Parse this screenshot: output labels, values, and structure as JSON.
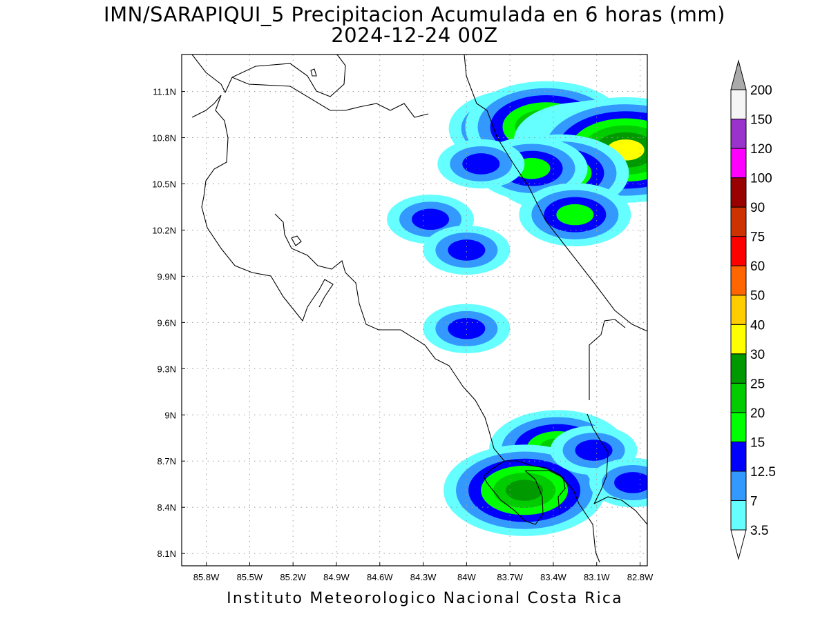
{
  "title": {
    "line1": "IMN/SARAPIQUI_5 Precipitacion Acumulada en 6 horas (mm)",
    "line2": "2024-12-24 00Z"
  },
  "credit": "Instituto Meteorologico Nacional Costa Rica",
  "map": {
    "lon_range": [
      -85.97,
      -82.75
    ],
    "lat_range": [
      8.02,
      11.34
    ],
    "x_ticks": [
      {
        "label": "85.8W",
        "value": -85.8
      },
      {
        "label": "85.5W",
        "value": -85.5
      },
      {
        "label": "85.2W",
        "value": -85.2
      },
      {
        "label": "84.9W",
        "value": -84.9
      },
      {
        "label": "84.6W",
        "value": -84.6
      },
      {
        "label": "84.3W",
        "value": -84.3
      },
      {
        "label": "84W",
        "value": -84.0
      },
      {
        "label": "83.7W",
        "value": -83.7
      },
      {
        "label": "83.4W",
        "value": -83.4
      },
      {
        "label": "83.1W",
        "value": -83.1
      },
      {
        "label": "82.8W",
        "value": -82.8
      }
    ],
    "y_ticks": [
      {
        "label": "11.1N",
        "value": 11.1
      },
      {
        "label": "10.8N",
        "value": 10.8
      },
      {
        "label": "10.5N",
        "value": 10.5
      },
      {
        "label": "10.2N",
        "value": 10.2
      },
      {
        "label": "9.9N",
        "value": 9.9
      },
      {
        "label": "9.6N",
        "value": 9.6
      },
      {
        "label": "9.3N",
        "value": 9.3
      },
      {
        "label": "9N",
        "value": 9.0
      },
      {
        "label": "8.7N",
        "value": 8.7
      },
      {
        "label": "8.4N",
        "value": 8.4
      },
      {
        "label": "8.1N",
        "value": 8.1
      }
    ],
    "grid": true
  },
  "legend": {
    "levels": [
      {
        "label": "3.5",
        "color": "#66ffff"
      },
      {
        "label": "7",
        "color": "#3399ff"
      },
      {
        "label": "12.5",
        "color": "#0000ff"
      },
      {
        "label": "15",
        "color": "#00ff00"
      },
      {
        "label": "20",
        "color": "#00cc00"
      },
      {
        "label": "25",
        "color": "#009900"
      },
      {
        "label": "30",
        "color": "#ffff00"
      },
      {
        "label": "40",
        "color": "#ffcc00"
      },
      {
        "label": "50",
        "color": "#ff6600"
      },
      {
        "label": "60",
        "color": "#ff0000"
      },
      {
        "label": "75",
        "color": "#cc3300"
      },
      {
        "label": "90",
        "color": "#990000"
      },
      {
        "label": "100",
        "color": "#ff00ff"
      },
      {
        "label": "120",
        "color": "#9933cc"
      },
      {
        "label": "150",
        "color": "#f5f5f5"
      },
      {
        "label": "200",
        "color": ""
      }
    ],
    "over_color": "#aaaaaa"
  },
  "rain_cells": [
    {
      "lon": -83.65,
      "lat": 10.86,
      "levels": 5
    },
    {
      "lon": -83.45,
      "lat": 10.87,
      "levels": 6
    },
    {
      "lon": -83.2,
      "lat": 10.78,
      "levels": 5
    },
    {
      "lon": -83.05,
      "lat": 10.75,
      "levels": 6
    },
    {
      "lon": -82.9,
      "lat": 10.72,
      "levels": 7
    },
    {
      "lon": -83.35,
      "lat": 10.57,
      "levels": 5
    },
    {
      "lon": -83.55,
      "lat": 10.6,
      "levels": 4
    },
    {
      "lon": -83.9,
      "lat": 10.63,
      "levels": 3
    },
    {
      "lon": -83.25,
      "lat": 10.3,
      "levels": 4
    },
    {
      "lon": -84.25,
      "lat": 10.27,
      "levels": 3
    },
    {
      "lon": -84.0,
      "lat": 10.07,
      "levels": 3
    },
    {
      "lon": -84.0,
      "lat": 9.56,
      "levels": 3
    },
    {
      "lon": -83.37,
      "lat": 8.78,
      "levels": 5
    },
    {
      "lon": -83.6,
      "lat": 8.51,
      "levels": 6
    },
    {
      "lon": -83.12,
      "lat": 8.77,
      "levels": 3
    },
    {
      "lon": -82.85,
      "lat": 8.56,
      "levels": 3
    }
  ]
}
